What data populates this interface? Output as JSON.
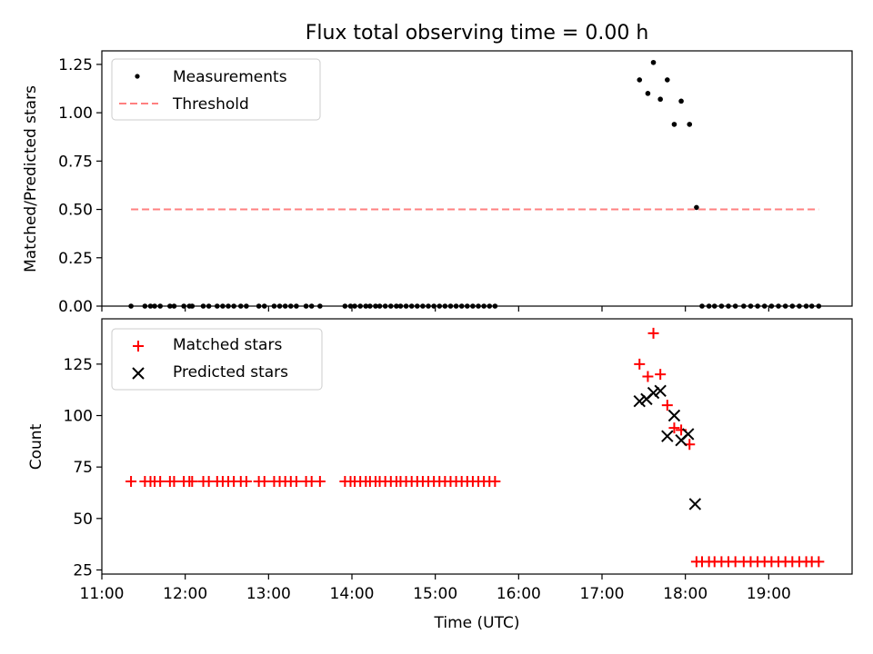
{
  "chart_data": [
    {
      "type": "scatter",
      "title": "Flux total observing time = 0.00 h",
      "xlabel": "",
      "ylabel": "Matched/Predicted stars",
      "ylim": [
        0,
        1.32
      ],
      "xlim": [
        "11:00",
        "20:00"
      ],
      "x_ticks": [
        11,
        12,
        13,
        14,
        15,
        16,
        17,
        18,
        19
      ],
      "y_ticks": [
        0.0,
        0.25,
        0.5,
        0.75,
        1.0,
        1.25
      ],
      "y_tick_labels": [
        "0.00",
        "0.25",
        "0.50",
        "0.75",
        "1.00",
        "1.25"
      ],
      "legend_position": "top-left",
      "colors": {
        "measurements": "#000000",
        "threshold": "#ff8080"
      },
      "series": [
        {
          "name": "Measurements",
          "marker": "dot",
          "x": [
            "11:21",
            "11:31",
            "11:35",
            "11:38",
            "11:42",
            "11:49",
            "11:52",
            "11:59",
            "12:03",
            "12:05",
            "12:13",
            "12:17",
            "12:23",
            "12:27",
            "12:31",
            "12:35",
            "12:40",
            "12:44",
            "12:53",
            "12:57",
            "13:04",
            "13:08",
            "13:12",
            "13:16",
            "13:20",
            "13:27",
            "13:31",
            "13:37",
            "13:55",
            "13:59",
            "14:02",
            "14:06",
            "14:10",
            "14:13",
            "14:17",
            "14:20",
            "14:24",
            "14:28",
            "14:32",
            "14:35",
            "14:39",
            "14:43",
            "14:47",
            "14:51",
            "14:55",
            "14:59",
            "15:03",
            "15:07",
            "15:11",
            "15:15",
            "15:19",
            "15:23",
            "15:27",
            "15:31",
            "15:35",
            "15:39",
            "15:43",
            "17:27",
            "17:33",
            "17:37",
            "17:42",
            "17:47",
            "17:52",
            "17:57",
            "18:03",
            "18:08",
            "18:12",
            "18:17",
            "18:21",
            "18:26",
            "18:31",
            "18:36",
            "18:42",
            "18:47",
            "18:52",
            "18:57",
            "19:02",
            "19:07",
            "19:12",
            "19:17",
            "19:22",
            "19:27",
            "19:31",
            "19:36"
          ],
          "y": [
            0,
            0,
            0,
            0,
            0,
            0,
            0,
            0,
            0,
            0,
            0,
            0,
            0,
            0,
            0,
            0,
            0,
            0,
            0,
            0,
            0,
            0,
            0,
            0,
            0,
            0,
            0,
            0,
            0,
            0,
            0,
            0,
            0,
            0,
            0,
            0,
            0,
            0,
            0,
            0,
            0,
            0,
            0,
            0,
            0,
            0,
            0,
            0,
            0,
            0,
            0,
            0,
            0,
            0,
            0,
            0,
            0,
            1.17,
            1.1,
            1.26,
            1.07,
            1.17,
            0.94,
            1.06,
            0.94,
            0.51,
            0,
            0,
            0,
            0,
            0,
            0,
            0,
            0,
            0,
            0,
            0,
            0,
            0,
            0,
            0,
            0,
            0,
            0
          ]
        },
        {
          "name": "Threshold",
          "style": "dashed",
          "x": [
            "11:21",
            "19:36"
          ],
          "y": [
            0.5,
            0.5
          ]
        }
      ]
    },
    {
      "type": "scatter",
      "title": "",
      "xlabel": "Time (UTC)",
      "ylabel": "Count",
      "ylim": [
        23,
        147
      ],
      "xlim": [
        "11:00",
        "20:00"
      ],
      "x_ticks": [
        11,
        12,
        13,
        14,
        15,
        16,
        17,
        18,
        19
      ],
      "x_tick_labels": [
        "11:00",
        "12:00",
        "13:00",
        "14:00",
        "15:00",
        "16:00",
        "17:00",
        "18:00",
        "19:00"
      ],
      "y_ticks": [
        25,
        50,
        75,
        100,
        125
      ],
      "y_tick_labels": [
        "25",
        "50",
        "75",
        "100",
        "125"
      ],
      "legend_position": "top-left",
      "colors": {
        "matched": "#ff0000",
        "predicted": "#000000"
      },
      "series": [
        {
          "name": "Matched stars",
          "marker": "plus",
          "x": [
            "11:21",
            "11:31",
            "11:35",
            "11:38",
            "11:42",
            "11:49",
            "11:52",
            "11:59",
            "12:03",
            "12:05",
            "12:13",
            "12:17",
            "12:23",
            "12:27",
            "12:31",
            "12:35",
            "12:40",
            "12:44",
            "12:53",
            "12:57",
            "13:04",
            "13:08",
            "13:12",
            "13:16",
            "13:20",
            "13:27",
            "13:31",
            "13:37",
            "13:55",
            "13:59",
            "14:02",
            "14:06",
            "14:10",
            "14:13",
            "14:17",
            "14:20",
            "14:24",
            "14:28",
            "14:32",
            "14:35",
            "14:39",
            "14:43",
            "14:47",
            "14:51",
            "14:55",
            "14:59",
            "15:03",
            "15:07",
            "15:11",
            "15:15",
            "15:19",
            "15:23",
            "15:27",
            "15:31",
            "15:35",
            "15:39",
            "15:43",
            "17:27",
            "17:33",
            "17:37",
            "17:42",
            "17:47",
            "17:52",
            "17:57",
            "18:03",
            "18:08",
            "18:12",
            "18:17",
            "18:21",
            "18:26",
            "18:31",
            "18:36",
            "18:42",
            "18:47",
            "18:52",
            "18:57",
            "19:02",
            "19:07",
            "19:12",
            "19:17",
            "19:22",
            "19:27",
            "19:31",
            "19:36"
          ],
          "y": [
            68,
            68,
            68,
            68,
            68,
            68,
            68,
            68,
            68,
            68,
            68,
            68,
            68,
            68,
            68,
            68,
            68,
            68,
            68,
            68,
            68,
            68,
            68,
            68,
            68,
            68,
            68,
            68,
            68,
            68,
            68,
            68,
            68,
            68,
            68,
            68,
            68,
            68,
            68,
            68,
            68,
            68,
            68,
            68,
            68,
            68,
            68,
            68,
            68,
            68,
            68,
            68,
            68,
            68,
            68,
            68,
            68,
            125,
            119,
            140,
            120,
            105,
            94,
            93,
            86,
            29,
            29,
            29,
            29,
            29,
            29,
            29,
            29,
            29,
            29,
            29,
            29,
            29,
            29,
            29,
            29,
            29,
            29,
            29
          ]
        },
        {
          "name": "Predicted stars",
          "marker": "x",
          "x": [
            "17:27",
            "17:32",
            "17:37",
            "17:42",
            "17:47",
            "17:52",
            "17:57",
            "18:02",
            "18:07"
          ],
          "y": [
            107,
            108,
            111,
            112,
            90,
            100,
            88,
            91,
            57
          ]
        }
      ]
    }
  ]
}
